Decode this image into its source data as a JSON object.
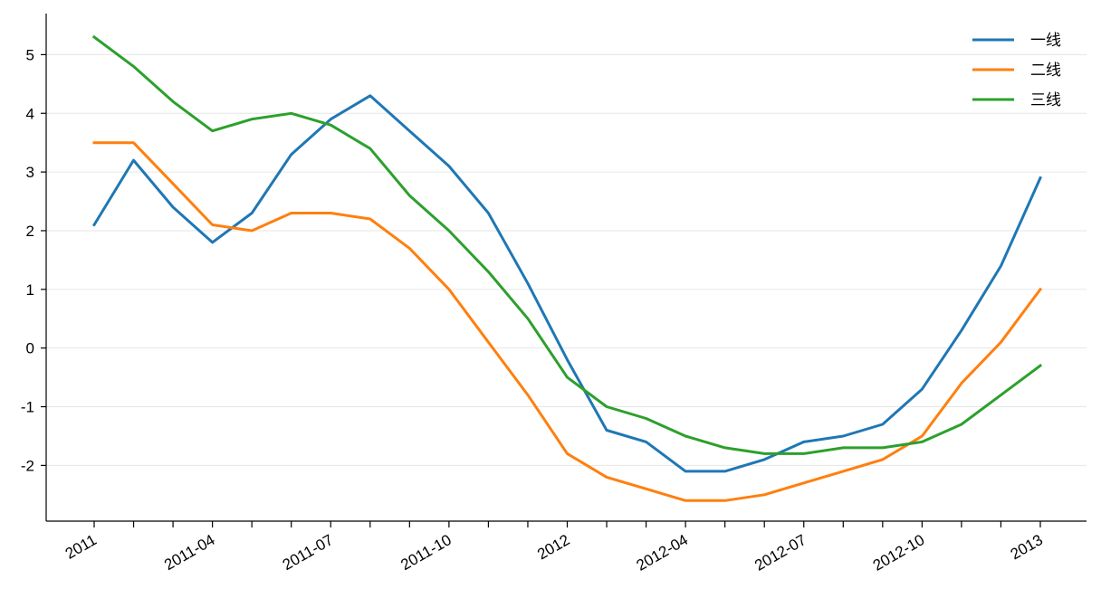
{
  "chart_data": {
    "type": "line",
    "title": "",
    "xlabel": "",
    "ylabel": "",
    "x": [
      "2011-01",
      "2011-02",
      "2011-03",
      "2011-04",
      "2011-05",
      "2011-06",
      "2011-07",
      "2011-08",
      "2011-09",
      "2011-10",
      "2011-11",
      "2011-12",
      "2012-01",
      "2012-02",
      "2012-03",
      "2012-04",
      "2012-05",
      "2012-06",
      "2012-07",
      "2012-08",
      "2012-09",
      "2012-10",
      "2012-11",
      "2012-12",
      "2013-01"
    ],
    "x_ticks": [
      {
        "x": "2011-01",
        "label": "2011"
      },
      {
        "x": "2011-04",
        "label": "2011-04"
      },
      {
        "x": "2011-07",
        "label": "2011-07"
      },
      {
        "x": "2011-10",
        "label": "2011-10"
      },
      {
        "x": "2012-01",
        "label": "2012"
      },
      {
        "x": "2012-04",
        "label": "2012-04"
      },
      {
        "x": "2012-07",
        "label": "2012-07"
      },
      {
        "x": "2012-10",
        "label": "2012-10"
      },
      {
        "x": "2013-01",
        "label": "2013"
      }
    ],
    "y_ticks": [
      "5",
      "4",
      "3",
      "2",
      "1",
      "0",
      "-1",
      "-2"
    ],
    "ylim": [
      -2.95,
      5.7
    ],
    "grid": "horizontal",
    "legend_position": "top-right",
    "series": [
      {
        "name": "一线",
        "color": "#1f77b4",
        "values": [
          2.1,
          3.2,
          2.4,
          1.8,
          2.3,
          3.3,
          3.9,
          4.3,
          3.7,
          3.1,
          2.3,
          1.1,
          -0.2,
          -1.4,
          -1.6,
          -2.1,
          -2.1,
          -1.9,
          -1.6,
          -1.5,
          -1.3,
          -0.7,
          0.3,
          1.4,
          2.9
        ]
      },
      {
        "name": "二线",
        "color": "#ff7f0e",
        "values": [
          3.5,
          3.5,
          2.8,
          2.1,
          2.0,
          2.3,
          2.3,
          2.2,
          1.7,
          1.0,
          0.1,
          -0.8,
          -1.8,
          -2.2,
          -2.4,
          -2.6,
          -2.6,
          -2.5,
          -2.3,
          -2.1,
          -1.9,
          -1.5,
          -0.6,
          0.1,
          1.0
        ]
      },
      {
        "name": "三线",
        "color": "#2ca02c",
        "values": [
          5.3,
          4.8,
          4.2,
          3.7,
          3.9,
          4.0,
          3.8,
          3.4,
          2.6,
          2.0,
          1.3,
          0.5,
          -0.5,
          -1.0,
          -1.2,
          -1.5,
          -1.7,
          -1.8,
          -1.8,
          -1.7,
          -1.7,
          -1.6,
          -1.3,
          -0.8,
          -0.3
        ]
      }
    ]
  }
}
